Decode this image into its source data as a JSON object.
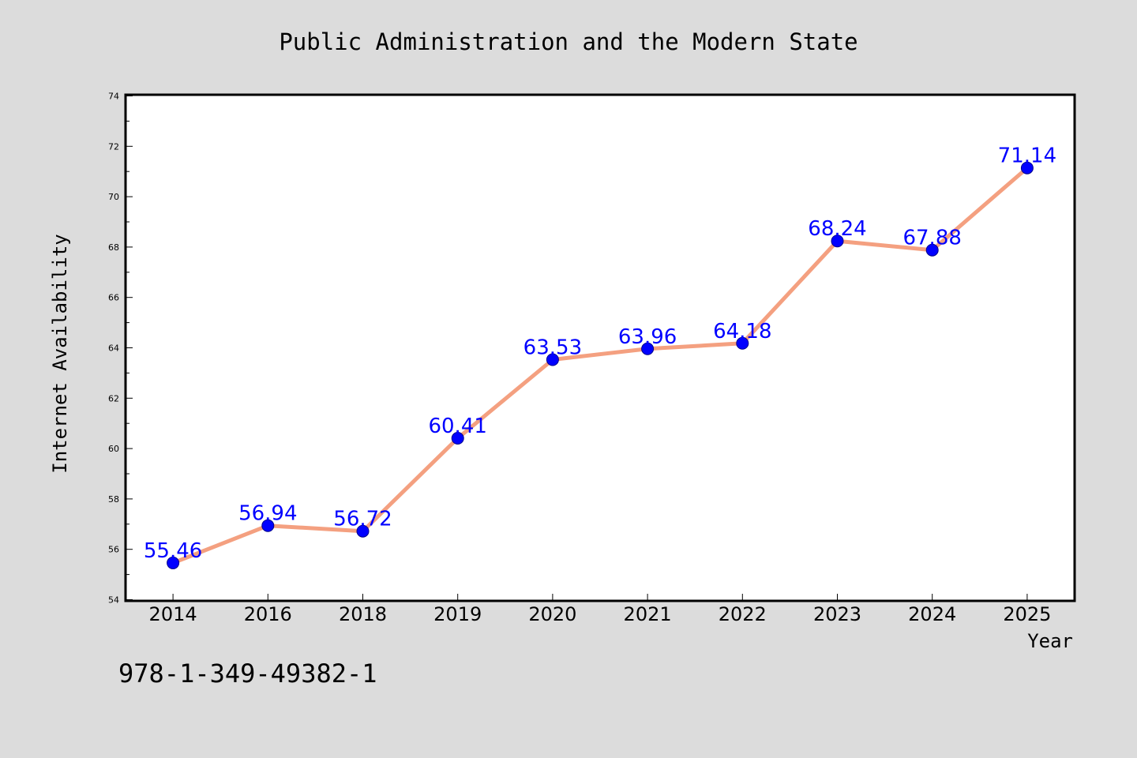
{
  "chart_data": {
    "type": "line",
    "title": "Public Administration and the Modern State",
    "xlabel": "Year",
    "ylabel": "Internet Availability",
    "categories": [
      "2014",
      "2016",
      "2018",
      "2019",
      "2020",
      "2021",
      "2022",
      "2023",
      "2024",
      "2025"
    ],
    "series": [
      {
        "values": [
          55.46,
          56.94,
          56.72,
          60.41,
          63.53,
          63.96,
          64.18,
          68.24,
          67.88,
          71.14
        ],
        "labels": [
          "55.46",
          "56.94",
          "56.72",
          "60.41",
          "63.53",
          "63.96",
          "64.18",
          "68.24",
          "67.88",
          "71.14"
        ],
        "line_color": "#f4a080",
        "marker_color": "#0000ff"
      }
    ],
    "ylim": [
      54,
      74
    ],
    "yticks": [
      "54",
      "56",
      "58",
      "60",
      "62",
      "64",
      "66",
      "68",
      "70",
      "72",
      "74"
    ],
    "grid": false,
    "legend": "none"
  },
  "footer": {
    "isbn": "978-1-349-49382-1"
  },
  "colors": {
    "background": "#dcdcdc",
    "plot_background": "#ffffff"
  }
}
